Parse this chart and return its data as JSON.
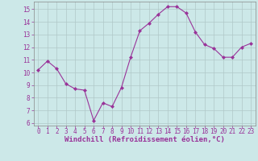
{
  "x": [
    0,
    1,
    2,
    3,
    4,
    5,
    6,
    7,
    8,
    9,
    10,
    11,
    12,
    13,
    14,
    15,
    16,
    17,
    18,
    19,
    20,
    21,
    22,
    23
  ],
  "y": [
    10.2,
    10.9,
    10.3,
    9.1,
    8.7,
    8.6,
    6.2,
    7.6,
    7.3,
    8.8,
    11.2,
    13.3,
    13.9,
    14.6,
    15.2,
    15.2,
    14.7,
    13.2,
    12.2,
    11.9,
    11.2,
    11.2,
    12.0,
    12.3
  ],
  "line_color": "#993399",
  "marker": "D",
  "marker_size": 2,
  "bg_color": "#cce8e8",
  "grid_color": "#b0c8c8",
  "xlabel": "Windchill (Refroidissement éolien,°C)",
  "xlim": [
    -0.5,
    23.5
  ],
  "ylim": [
    5.8,
    15.6
  ],
  "yticks": [
    6,
    7,
    8,
    9,
    10,
    11,
    12,
    13,
    14,
    15
  ],
  "xticks": [
    0,
    1,
    2,
    3,
    4,
    5,
    6,
    7,
    8,
    9,
    10,
    11,
    12,
    13,
    14,
    15,
    16,
    17,
    18,
    19,
    20,
    21,
    22,
    23
  ],
  "tick_color": "#993399",
  "label_color": "#993399",
  "label_fontsize": 6.5,
  "tick_fontsize": 5.5
}
